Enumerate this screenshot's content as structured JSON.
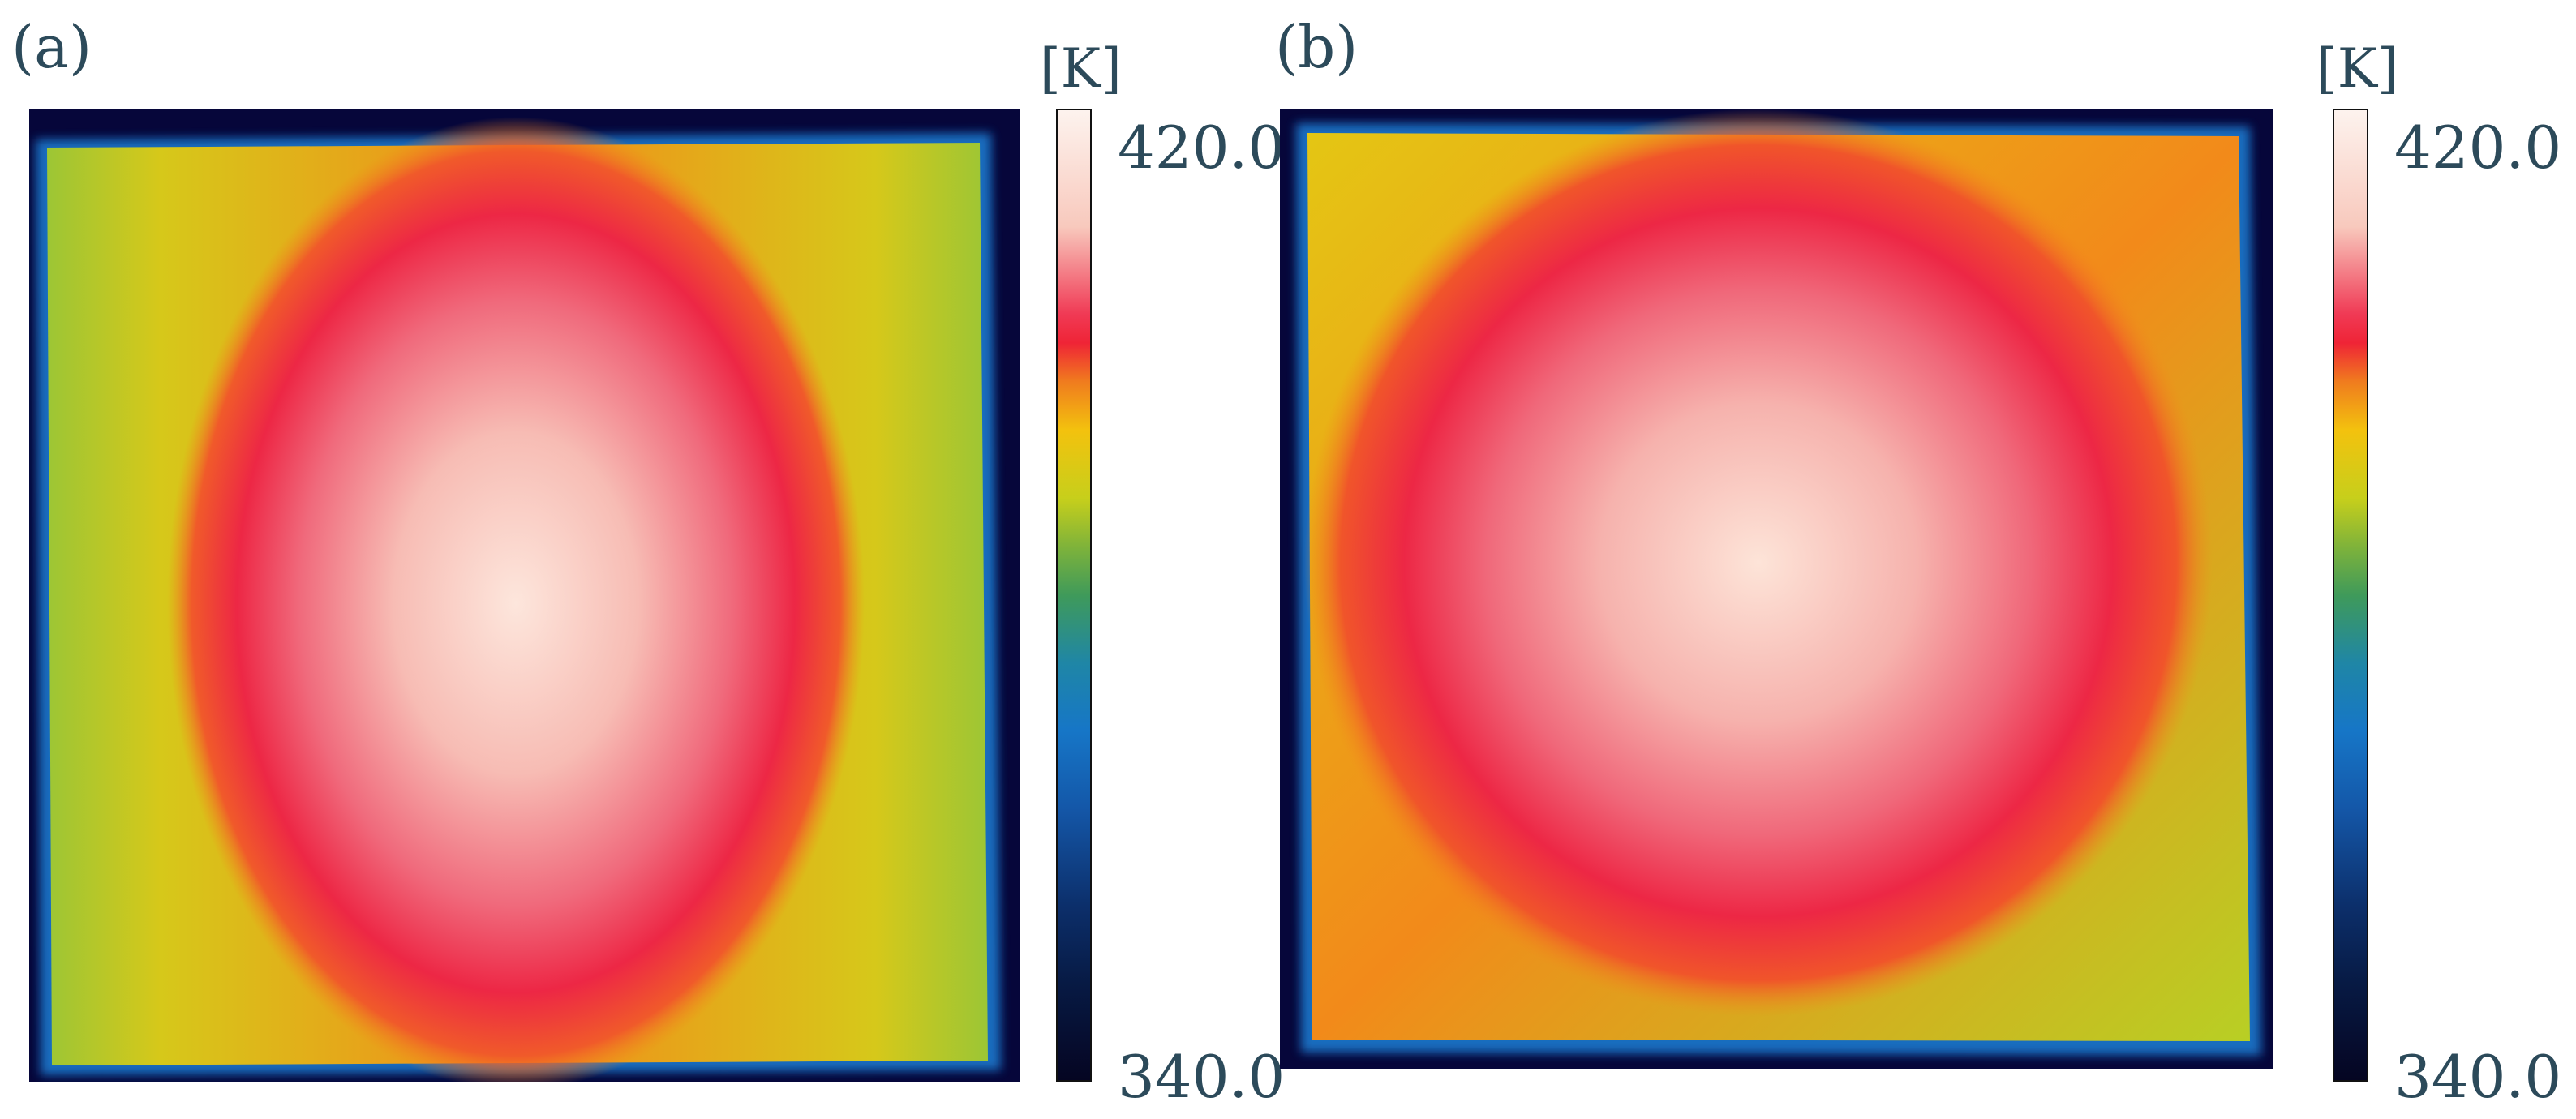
{
  "panels": [
    {
      "label": "(a)",
      "unit": "[K]",
      "scale_max": "420.0",
      "scale_min": "340.0"
    },
    {
      "label": "(b)",
      "unit": "[K]",
      "scale_max": "420.0",
      "scale_min": "340.0"
    }
  ],
  "colors": {
    "background_frame": "#06063a",
    "edge_glow": "#1e7fd6",
    "cool_green": "#8fc236",
    "warm_yellow": "#f2c712",
    "orange": "#f28a1a",
    "hot_red": "#ee2a48",
    "peak_white": "#fbe4da"
  }
}
